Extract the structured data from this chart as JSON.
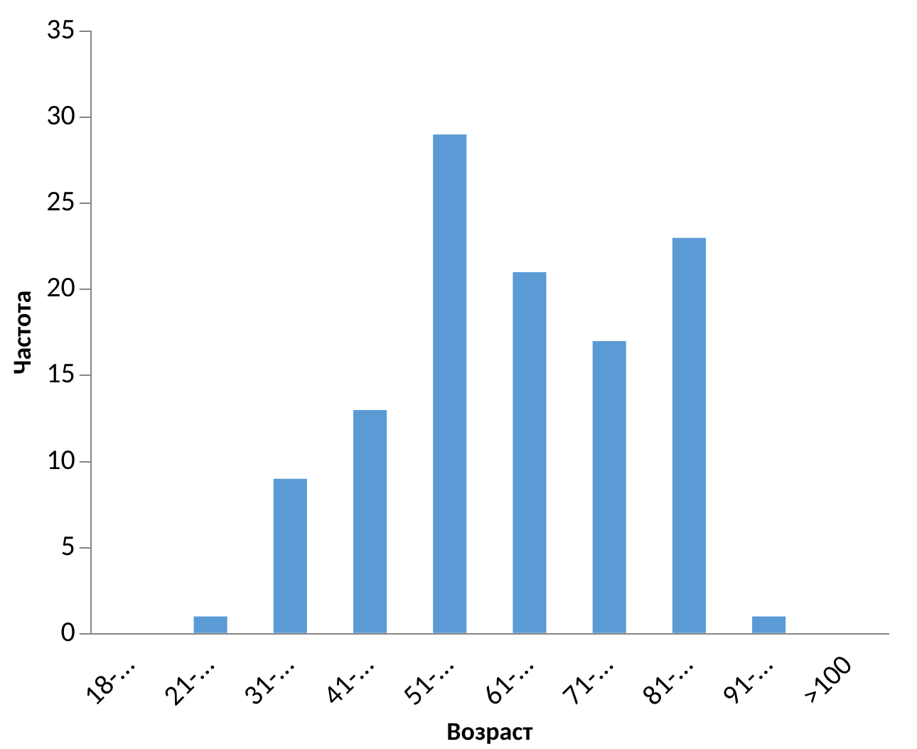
{
  "chart_data": {
    "type": "bar",
    "xlabel": "Возраст",
    "ylabel": "Частота",
    "categories": [
      "18-…",
      "21-…",
      "31-…",
      "41-…",
      "51-…",
      "61-…",
      "71-…",
      "81-…",
      "91-…",
      ">100"
    ],
    "values": [
      0,
      1,
      9,
      13,
      29,
      21,
      17,
      23,
      1,
      0
    ],
    "color": "#5b9bd5",
    "ylim": [
      0,
      35
    ],
    "yticks": [
      0,
      5,
      10,
      15,
      20,
      25,
      30,
      35
    ],
    "grid": false,
    "legend": false
  }
}
